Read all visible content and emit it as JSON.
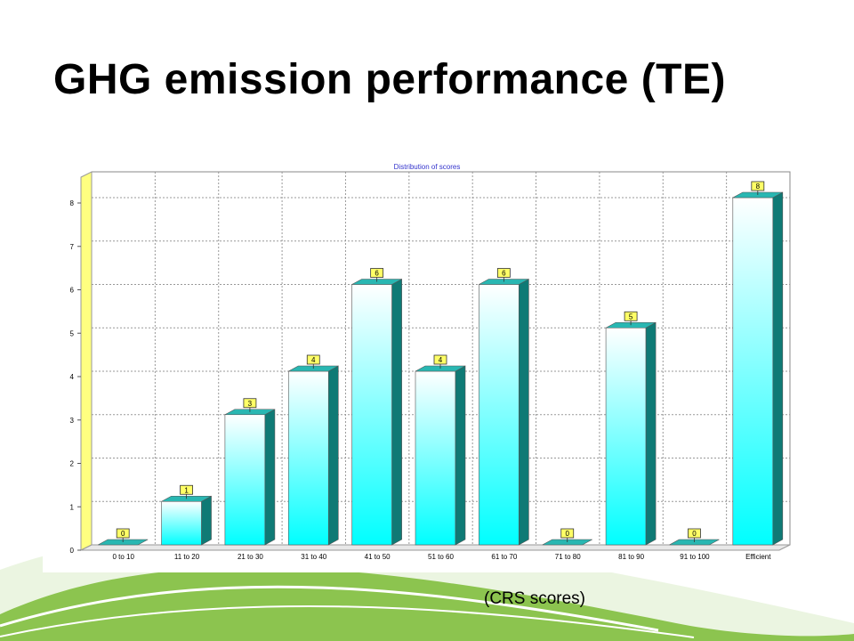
{
  "slide": {
    "title": "GHG emission performance (TE)",
    "caption": "(CRS scores)"
  },
  "colors": {
    "bar_top": "#ffffff",
    "bar_bottom": "#00ffff",
    "bar_side": "#0f7a75",
    "bar_cap": "#29b7b2",
    "label_box": "#ffff66",
    "plot_bg": "#ffffff",
    "axis_wall": "#ffff80",
    "title_color": "#3333cc",
    "swoosh_green": "#7cc242",
    "swoosh_light": "#d7ecc4"
  },
  "chart_data": {
    "type": "bar",
    "title": "Distribution of scores",
    "categories": [
      "0 to 10",
      "11 to 20",
      "21 to 30",
      "31 to 40",
      "41 to 50",
      "51 to 60",
      "61 to 70",
      "71 to 80",
      "81 to 90",
      "91 to 100",
      "Efficient"
    ],
    "values": [
      0,
      1,
      3,
      4,
      6,
      4,
      6,
      0,
      5,
      0,
      8
    ],
    "ylim": [
      0,
      8
    ],
    "yticks": [
      0,
      1,
      2,
      3,
      4,
      5,
      6,
      7,
      8
    ],
    "xlabel": "",
    "ylabel": "",
    "grid": true,
    "data_labels": true
  }
}
